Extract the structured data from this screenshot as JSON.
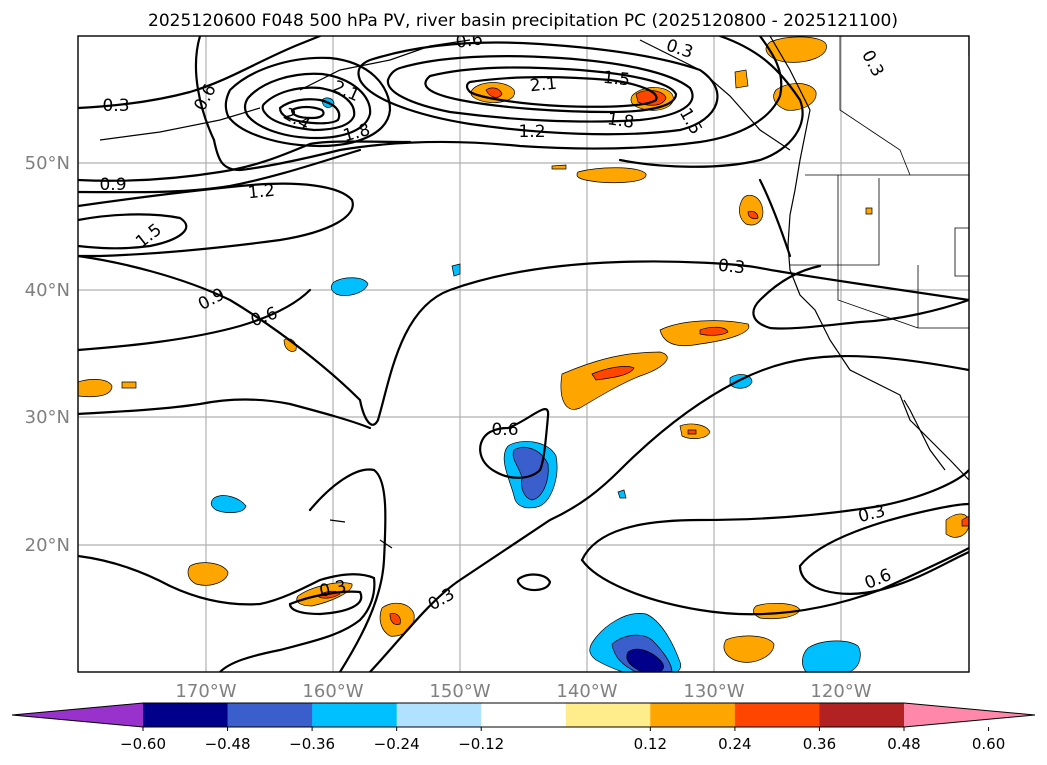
{
  "title": "2025120600 F048 500 hPa PV, river basin precipitation PC (2025120800 - 2025121100)",
  "map": {
    "lon_labels": [
      "170°W",
      "160°W",
      "150°W",
      "140°W",
      "130°W",
      "120°W"
    ],
    "lat_labels": [
      "50°N",
      "40°N",
      "30°N",
      "20°N"
    ],
    "extent": {
      "lon_min": -180,
      "lon_max": -110,
      "lat_min": 10,
      "lat_max": 60
    },
    "gridlines": true,
    "contour_labels": [
      "0.3",
      "0.6",
      "2.1",
      "2.4",
      "1.8",
      "0.6",
      "0.3",
      "1.5",
      "2.1",
      "1.2",
      "1.5",
      "1.8",
      "0.3",
      "0.9",
      "1.2",
      "1.5",
      "0.3",
      "0.9",
      "0.6",
      "0.6",
      "0.3",
      "0.6",
      "0.3",
      "0.3"
    ]
  },
  "colorbar": {
    "ticks": [
      "−0.60",
      "−0.48",
      "−0.36",
      "−0.24",
      "−0.12",
      "0.12",
      "0.24",
      "0.36",
      "0.48",
      "0.60"
    ],
    "colors": [
      "#9932cc",
      "#00008b",
      "#3a5fcd",
      "#00bfff",
      "#b0e2ff",
      "#ffffff",
      "#ffec8b",
      "#ffa500",
      "#ff4500",
      "#b22222",
      "#ff88aa"
    ],
    "extend": "both"
  },
  "colors": {
    "positive_orange": "#ffa500",
    "positive_red": "#ff4500",
    "negative_cyan": "#00bfff",
    "negative_blue": "#3a5fcd",
    "negative_navy": "#00008b",
    "contour": "#000000",
    "grid": "#b0b0b0",
    "tick_label": "#808080"
  }
}
